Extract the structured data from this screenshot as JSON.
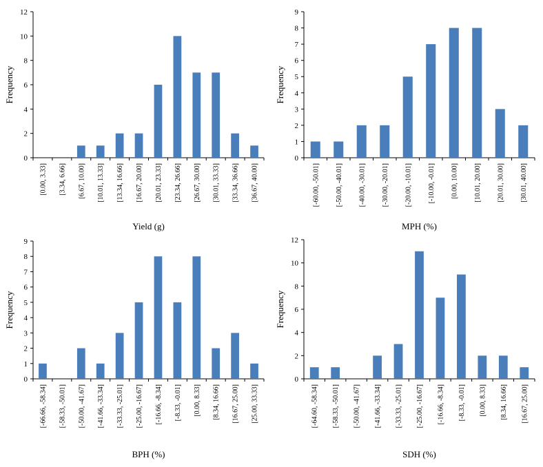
{
  "bar_color": "#4a7ebb",
  "chart_data": [
    {
      "type": "bar",
      "xlabel": "Yield (g)",
      "ylabel": "Frequency",
      "ylim": [
        0,
        12
      ],
      "yticks": [
        "0",
        "2",
        "4",
        "6",
        "8",
        "10",
        "12"
      ],
      "categories": [
        "[0.00, 3.33]",
        "[3.34, 6.66]",
        "[6.67, 10.00]",
        "[10.01, 13.33]",
        "[13.34, 16.66]",
        "[16.67, 20.00]",
        "[20.01, 23.33]",
        "[23.34, 26.66]",
        "[26.67, 30.00]",
        "[30.01, 33.33]",
        "[33.34, 36.66]",
        "[36.67, 40.00]"
      ],
      "values": [
        0,
        0,
        1,
        1,
        2,
        2,
        6,
        10,
        7,
        7,
        2,
        1
      ]
    },
    {
      "type": "bar",
      "xlabel": "MPH (%)",
      "ylabel": "Frequency",
      "ylim": [
        0,
        9
      ],
      "yticks": [
        "0",
        "1",
        "2",
        "3",
        "4",
        "5",
        "6",
        "7",
        "8",
        "9"
      ],
      "categories": [
        "[-60.00, -50.01]",
        "[-50.00, -40.01]",
        "[-40.00, -30.01]",
        "[-30.00, -20.01]",
        "[-20.00, -10.01]",
        "[-10.00, -0.01]",
        "[0.00, 10.00]",
        "[10.01, 20.00]",
        "[20.01, 30.00]",
        "[30.01, 40.00]"
      ],
      "values": [
        1,
        1,
        2,
        2,
        5,
        7,
        8,
        8,
        3,
        2
      ]
    },
    {
      "type": "bar",
      "xlabel": "BPH (%)",
      "ylabel": "Frequency",
      "ylim": [
        0,
        9
      ],
      "yticks": [
        "0",
        "1",
        "2",
        "3",
        "4",
        "5",
        "6",
        "7",
        "8",
        "9"
      ],
      "categories": [
        "[-66.66, -58.34]",
        "[-58.33, -50.01]",
        "[-50.00, -41.67]",
        "[-41.66, -33.34]",
        "[-33.33, -25.01]",
        "[-25.00, -16.67]",
        "[-16.66, -8.34]",
        "[-8.33, -0.01]",
        "[0.00, 8.33]",
        "[8.34, 16.66]",
        "[16.67, 25.00]",
        "[25.00, 33.33]"
      ],
      "values": [
        1,
        0,
        2,
        1,
        3,
        5,
        8,
        5,
        8,
        2,
        3,
        1
      ]
    },
    {
      "type": "bar",
      "xlabel": "SDH (%)",
      "ylabel": "Frequency",
      "ylim": [
        0,
        12
      ],
      "yticks": [
        "0",
        "2",
        "4",
        "6",
        "8",
        "10",
        "12"
      ],
      "categories": [
        "[-64.60, -58.34]",
        "[-58.33, -50.01]",
        "[-50.00, -41.67]",
        "[-41.66, -33.34]",
        "[-33.33, -25.01]",
        "[-25.00, -16.67]",
        "[-16.66, -8.34]",
        "[-8.33, -0.01]",
        "[0.00, 8.33]",
        "[8.34, 16.66]",
        "[16.67, 25.00]"
      ],
      "values": [
        1,
        1,
        0,
        2,
        3,
        11,
        7,
        9,
        2,
        2,
        1
      ]
    }
  ]
}
